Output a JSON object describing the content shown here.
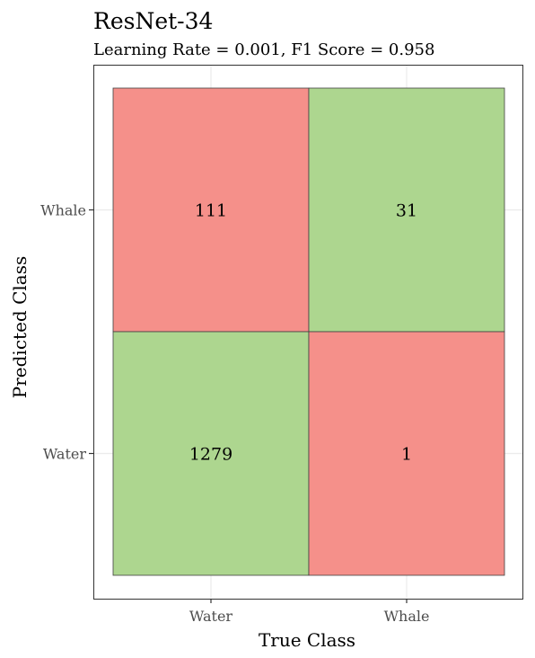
{
  "chart_data": {
    "type": "heatmap",
    "title": "ResNet-34",
    "subtitle": "Learning Rate = 0.001, F1 Score = 0.958",
    "xlabel": "True Class",
    "ylabel": "Predicted Class",
    "x_categories": [
      "Water",
      "Whale"
    ],
    "y_categories": [
      "Water",
      "Whale"
    ],
    "cells": [
      {
        "true_class": "Water",
        "predicted_class": "Whale",
        "value": 111,
        "correct": false
      },
      {
        "true_class": "Whale",
        "predicted_class": "Whale",
        "value": 31,
        "correct": true
      },
      {
        "true_class": "Water",
        "predicted_class": "Water",
        "value": 1279,
        "correct": true
      },
      {
        "true_class": "Whale",
        "predicted_class": "Water",
        "value": 1,
        "correct": false
      }
    ],
    "grid": true,
    "legend": "none"
  },
  "colors": {
    "correct": "#add68f",
    "incorrect": "#f5908a",
    "cell_border": "#404040",
    "gridline": "#ebebeb",
    "panel_border": "#333333",
    "tick": "#333333"
  }
}
